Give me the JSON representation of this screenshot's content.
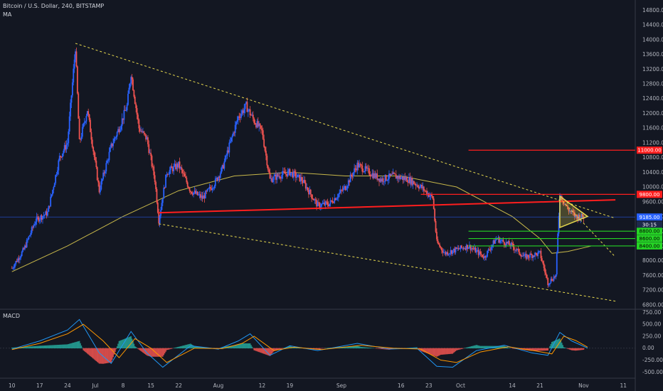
{
  "header": {
    "symbol": "Bitcoin / U.S. Dollar, 240, BITSTAMP",
    "ma_label": "MA",
    "macd_label": "MACD"
  },
  "colors": {
    "background": "#131722",
    "bull_candle": "#2962ff",
    "bear_candle": "#ef5350",
    "ma_line": "#c8b84a",
    "trendline": "#e6d84e",
    "red_line": "#ff1e1e",
    "green_line": "#25d425",
    "price_line": "#2962ff",
    "macd_line": "#2196f3",
    "signal_line": "#ff9800",
    "hist_up": "#26a69a",
    "hist_down": "#ef5350"
  },
  "chart_data": {
    "type": "candlestick",
    "price_axis": {
      "ticks": [
        "14800.00",
        "14400.00",
        "14000.00",
        "13600.00",
        "13200.00",
        "12800.00",
        "12400.00",
        "12000.00",
        "11600.00",
        "11200.00",
        "10800.00",
        "10400.00",
        "10000.00",
        "9600.00",
        "9200.00",
        "8800.00",
        "8400.00",
        "8000.00",
        "7600.00",
        "7200.00",
        "6800.00"
      ],
      "ylim": [
        6700,
        15000
      ]
    },
    "macd_axis": {
      "ticks": [
        "750.00",
        "500.00",
        "250.00",
        "0.00",
        "-250.00",
        "-500.00"
      ],
      "ylim": [
        -600,
        800
      ]
    },
    "x_axis": {
      "ticks": [
        "10",
        "17",
        "24",
        "Jul",
        "8",
        "15",
        "22",
        "Aug",
        "12",
        "19",
        "Sep",
        "16",
        "23",
        "Oct",
        "14",
        "21",
        "Nov",
        "11"
      ]
    },
    "price_path": [
      [
        "2019-06-10",
        7800
      ],
      [
        "2019-06-13",
        8300
      ],
      [
        "2019-06-16",
        9100
      ],
      [
        "2019-06-19",
        9300
      ],
      [
        "2019-06-22",
        10800
      ],
      [
        "2019-06-24",
        11200
      ],
      [
        "2019-06-26",
        13800
      ],
      [
        "2019-06-27",
        11200
      ],
      [
        "2019-06-29",
        12100
      ],
      [
        "2019-07-02",
        9900
      ],
      [
        "2019-07-05",
        11100
      ],
      [
        "2019-07-07",
        11600
      ],
      [
        "2019-07-09",
        12200
      ],
      [
        "2019-07-10",
        13100
      ],
      [
        "2019-07-12",
        11600
      ],
      [
        "2019-07-14",
        11300
      ],
      [
        "2019-07-16",
        10200
      ],
      [
        "2019-07-17",
        9100
      ],
      [
        "2019-07-19",
        10400
      ],
      [
        "2019-07-22",
        10600
      ],
      [
        "2019-07-25",
        9900
      ],
      [
        "2019-07-28",
        9700
      ],
      [
        "2019-07-31",
        10100
      ],
      [
        "2019-08-02",
        10500
      ],
      [
        "2019-08-06",
        11900
      ],
      [
        "2019-08-08",
        12200
      ],
      [
        "2019-08-10",
        11800
      ],
      [
        "2019-08-12",
        11500
      ],
      [
        "2019-08-14",
        10200
      ],
      [
        "2019-08-16",
        10300
      ],
      [
        "2019-08-19",
        10400
      ],
      [
        "2019-08-22",
        10200
      ],
      [
        "2019-08-26",
        9500
      ],
      [
        "2019-08-29",
        9550
      ],
      [
        "2019-09-02",
        10000
      ],
      [
        "2019-09-05",
        10600
      ],
      [
        "2019-09-08",
        10400
      ],
      [
        "2019-09-11",
        10200
      ],
      [
        "2019-09-14",
        10300
      ],
      [
        "2019-09-18",
        10200
      ],
      [
        "2019-09-21",
        10000
      ],
      [
        "2019-09-24",
        9700
      ],
      [
        "2019-09-25",
        8500
      ],
      [
        "2019-09-27",
        8200
      ],
      [
        "2019-09-30",
        8300
      ],
      [
        "2019-10-03",
        8400
      ],
      [
        "2019-10-07",
        8100
      ],
      [
        "2019-10-10",
        8600
      ],
      [
        "2019-10-14",
        8400
      ],
      [
        "2019-10-17",
        8100
      ],
      [
        "2019-10-21",
        8200
      ],
      [
        "2019-10-23",
        7400
      ],
      [
        "2019-10-25",
        7600
      ],
      [
        "2019-10-26",
        9800
      ],
      [
        "2019-10-28",
        9400
      ],
      [
        "2019-10-30",
        9200
      ],
      [
        "2019-11-01",
        9185
      ]
    ],
    "ma_path": [
      [
        "2019-06-10",
        7700
      ],
      [
        "2019-06-24",
        8400
      ],
      [
        "2019-07-08",
        9200
      ],
      [
        "2019-07-22",
        9900
      ],
      [
        "2019-08-05",
        10300
      ],
      [
        "2019-08-19",
        10400
      ],
      [
        "2019-09-02",
        10300
      ],
      [
        "2019-09-16",
        10300
      ],
      [
        "2019-09-30",
        10000
      ],
      [
        "2019-10-14",
        9200
      ],
      [
        "2019-10-21",
        8600
      ],
      [
        "2019-10-24",
        8200
      ],
      [
        "2019-10-28",
        8250
      ],
      [
        "2019-11-03",
        8400
      ]
    ],
    "macd_path": [
      [
        "2019-06-10",
        -20
      ],
      [
        "2019-06-17",
        150
      ],
      [
        "2019-06-24",
        380
      ],
      [
        "2019-06-27",
        600
      ],
      [
        "2019-07-02",
        -100
      ],
      [
        "2019-07-05",
        -320
      ],
      [
        "2019-07-10",
        350
      ],
      [
        "2019-07-14",
        -100
      ],
      [
        "2019-07-18",
        -400
      ],
      [
        "2019-07-25",
        50
      ],
      [
        "2019-08-01",
        -20
      ],
      [
        "2019-08-06",
        150
      ],
      [
        "2019-08-09",
        300
      ],
      [
        "2019-08-14",
        -150
      ],
      [
        "2019-08-19",
        50
      ],
      [
        "2019-08-26",
        -50
      ],
      [
        "2019-09-05",
        100
      ],
      [
        "2019-09-13",
        -20
      ],
      [
        "2019-09-20",
        0
      ],
      [
        "2019-09-25",
        -380
      ],
      [
        "2019-09-29",
        -400
      ],
      [
        "2019-10-05",
        -50
      ],
      [
        "2019-10-12",
        60
      ],
      [
        "2019-10-19",
        -100
      ],
      [
        "2019-10-23",
        -150
      ],
      [
        "2019-10-26",
        330
      ],
      [
        "2019-10-29",
        150
      ],
      [
        "2019-11-02",
        0
      ]
    ],
    "signal_path": [
      [
        "2019-06-10",
        -30
      ],
      [
        "2019-06-17",
        100
      ],
      [
        "2019-06-24",
        300
      ],
      [
        "2019-06-28",
        500
      ],
      [
        "2019-07-03",
        150
      ],
      [
        "2019-07-07",
        -200
      ],
      [
        "2019-07-11",
        200
      ],
      [
        "2019-07-15",
        0
      ],
      [
        "2019-07-19",
        -300
      ],
      [
        "2019-07-26",
        0
      ],
      [
        "2019-08-02",
        -10
      ],
      [
        "2019-08-07",
        100
      ],
      [
        "2019-08-10",
        250
      ],
      [
        "2019-08-15",
        -50
      ],
      [
        "2019-08-20",
        20
      ],
      [
        "2019-08-27",
        -30
      ],
      [
        "2019-09-06",
        60
      ],
      [
        "2019-09-14",
        0
      ],
      [
        "2019-09-21",
        -20
      ],
      [
        "2019-09-26",
        -250
      ],
      [
        "2019-09-30",
        -300
      ],
      [
        "2019-10-06",
        -80
      ],
      [
        "2019-10-13",
        30
      ],
      [
        "2019-10-20",
        -60
      ],
      [
        "2019-10-24",
        -120
      ],
      [
        "2019-10-27",
        250
      ],
      [
        "2019-10-30",
        160
      ],
      [
        "2019-11-02",
        20
      ]
    ],
    "trendlines": [
      {
        "from": [
          "2019-06-26",
          13900
        ],
        "to": [
          "2019-11-09",
          9150
        ]
      },
      {
        "from": [
          "2019-07-17",
          9000
        ],
        "to": [
          "2019-11-09",
          6900
        ]
      },
      {
        "from": [
          "2019-07-17",
          9300
        ],
        "to": [
          "2019-11-09",
          9650
        ]
      },
      {
        "from": [
          "2019-10-26",
          9700
        ],
        "to": [
          "2019-11-09",
          8100
        ]
      }
    ],
    "triangle": [
      [
        "2019-10-26",
        9750
      ],
      [
        "2019-10-26",
        8900
      ],
      [
        "2019-11-02",
        9200
      ]
    ],
    "horizontal_levels": [
      {
        "price": 11000,
        "start": "2019-10-03",
        "label": "11000.00",
        "color": "red"
      },
      {
        "price": 9800,
        "start": "2019-09-21",
        "label": "9800.00",
        "color": "red"
      },
      {
        "price": 8800,
        "start": "2019-10-03",
        "label": "8800.00",
        "color": "green"
      },
      {
        "price": 8600,
        "start": "2019-10-03",
        "label": "8600.00",
        "color": "green"
      },
      {
        "price": 8400,
        "start": "2019-10-03",
        "label": "8400.00",
        "color": "green"
      }
    ],
    "last_price": {
      "value": 9185,
      "label": "9185.00",
      "countdown": "30:15"
    }
  }
}
